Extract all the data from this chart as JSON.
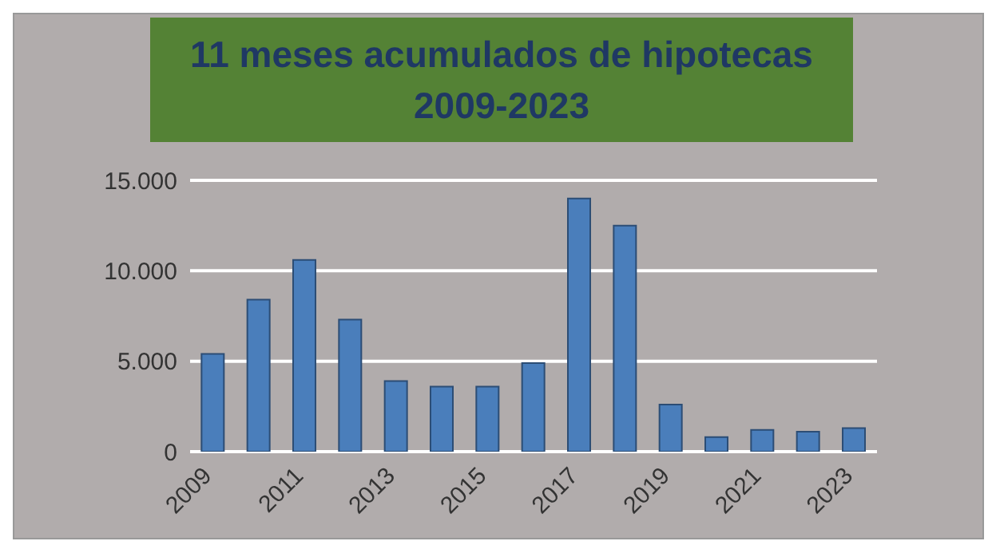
{
  "chart_data": {
    "type": "bar",
    "title": "11 meses acumulados de hipotecas\n2009-2023",
    "categories": [
      "2009",
      null,
      "2011",
      null,
      "2013",
      null,
      "2015",
      null,
      "2017",
      null,
      "2019",
      null,
      "2021",
      null,
      "2023"
    ],
    "values": [
      5400,
      8400,
      10600,
      7300,
      3900,
      3600,
      3600,
      4900,
      14000,
      12500,
      2600,
      800,
      1200,
      1100,
      1300
    ],
    "color": "#4a7ebb",
    "ylim": [
      0,
      15000
    ],
    "yticks": [
      0,
      {
        "value": 5000,
        "label": "5.000"
      },
      {
        "value": 10000,
        "label": "10.000"
      },
      {
        "value": 15000,
        "label": "15.000"
      }
    ],
    "grid": "y"
  }
}
